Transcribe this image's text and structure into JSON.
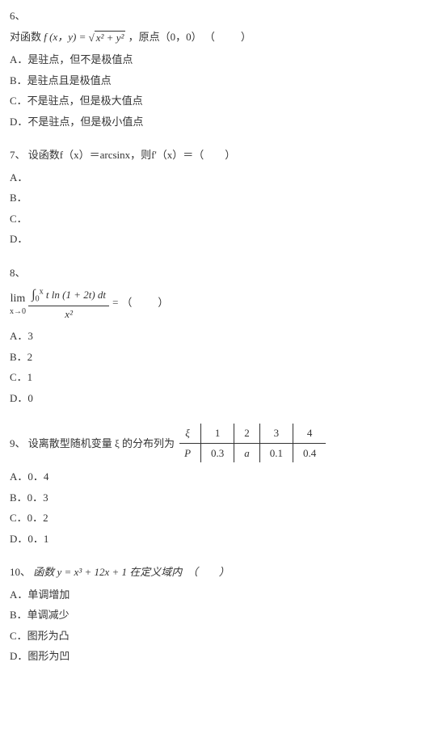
{
  "q6": {
    "num": "6、",
    "stem_pre": "对函数 ",
    "stem_func": "f (x，y) = ",
    "stem_sqrt": "x² + y²",
    "stem_post": " ，原点（0，0）",
    "paren": "（　　）",
    "opts": {
      "A": "A．是驻点，但不是极值点",
      "B": "B．是驻点且是极值点",
      "C": "C．不是驻点，但是极大值点",
      "D": "D．不是驻点，但是极小值点"
    }
  },
  "q7": {
    "num": "7、",
    "stem": "设函数f（x）＝arcsinx，则f'（x）＝（　　）",
    "opts": {
      "A": "A．",
      "B": "B．",
      "C": "C．",
      "D": "D．"
    }
  },
  "q8": {
    "num": "8、",
    "lim_top": "lim",
    "lim_bot": "x→0",
    "num_expr_pre": "∫",
    "num_expr_sub": "0",
    "num_expr_sup": "x",
    "num_expr_body": " t ln (1 + 2t) dt",
    "den_expr": "x²",
    "eq": " = ",
    "paren": "（　　）",
    "opts": {
      "A": "A．3",
      "B": "B．2",
      "C": "C．1",
      "D": "D．0"
    }
  },
  "q9": {
    "num": "9、",
    "stem": "设离散型随机变量 ξ 的分布列为",
    "table": {
      "head": [
        "ξ",
        "1",
        "2",
        "3",
        "4"
      ],
      "row": [
        "P",
        "0.3",
        "a",
        "0.1",
        "0.4"
      ]
    },
    "opts": {
      "A": "A．0．4",
      "B": "B．0．3",
      "C": "C．0．2",
      "D": "D．0．1"
    }
  },
  "q10": {
    "num": "10、",
    "stem": "函数 y = x³ + 12x + 1 在定义域内　（　　）",
    "opts": {
      "A": "A．单调增加",
      "B": "B．单调减少",
      "C": "C．图形为凸",
      "D": "D．图形为凹"
    }
  }
}
